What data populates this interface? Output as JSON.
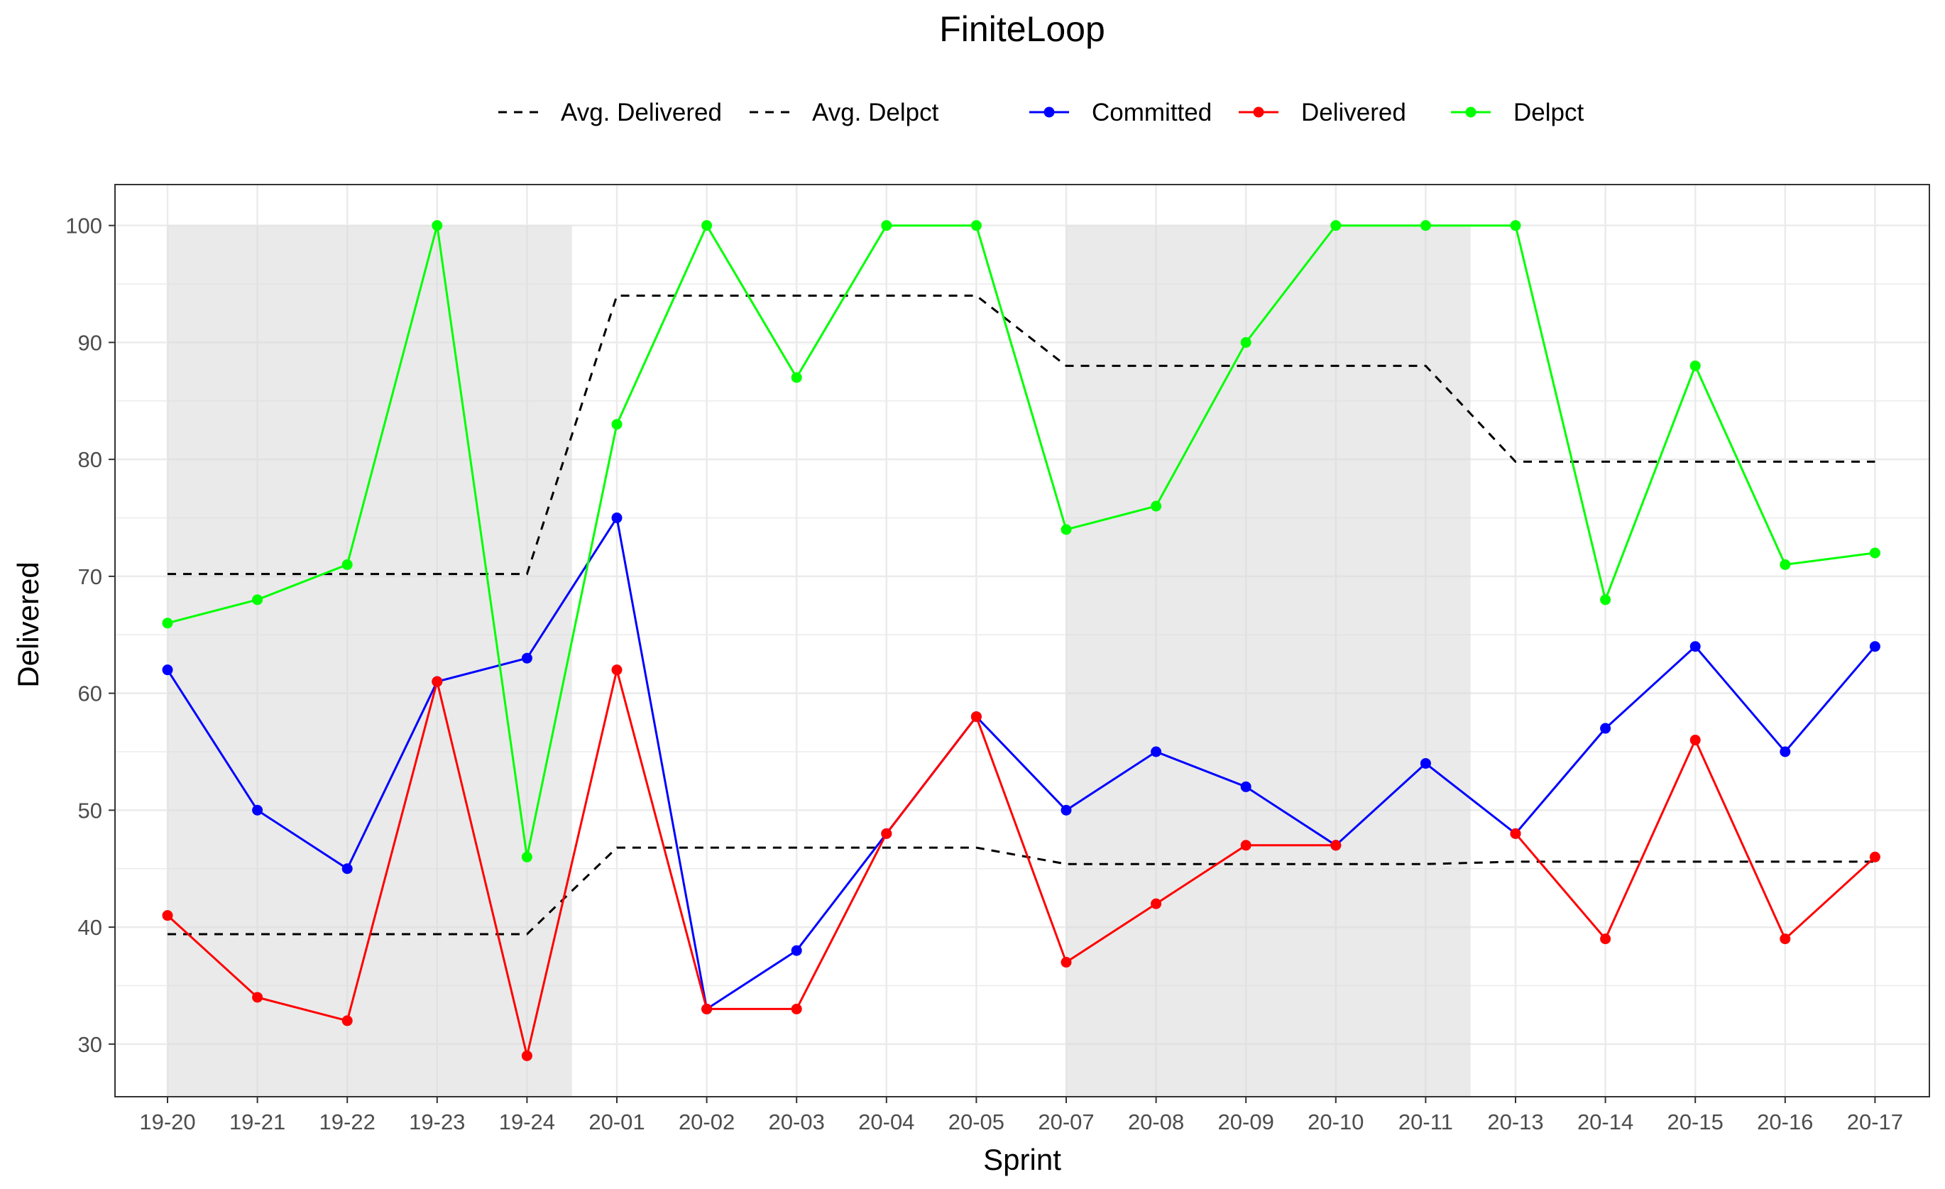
{
  "chart_data": {
    "type": "line",
    "title": "FiniteLoop",
    "xlabel": "Sprint",
    "ylabel": "Delivered",
    "categories": [
      "19-20",
      "19-21",
      "19-22",
      "19-23",
      "19-24",
      "20-01",
      "20-02",
      "20-03",
      "20-04",
      "20-05",
      "20-07",
      "20-08",
      "20-09",
      "20-10",
      "20-11",
      "20-13",
      "20-14",
      "20-15",
      "20-16",
      "20-17"
    ],
    "ylim": [
      25.5,
      103.5
    ],
    "yticks": [
      30,
      40,
      50,
      60,
      70,
      80,
      90,
      100
    ],
    "grid": true,
    "legend_position": "top",
    "shaded_ranges": [
      {
        "from": "19-20",
        "to": "19-24",
        "ymax": 100
      },
      {
        "from": "20-07",
        "to": "20-11",
        "ymax": 100
      }
    ],
    "series": [
      {
        "name": "Committed",
        "color": "#0000ff",
        "style": "line+points",
        "values": [
          62,
          50,
          45,
          61,
          63,
          75,
          33,
          38,
          48,
          58,
          50,
          55,
          52,
          47,
          54,
          48,
          57,
          64,
          55,
          64
        ]
      },
      {
        "name": "Delivered",
        "color": "#ff0000",
        "style": "line+points",
        "values": [
          41,
          34,
          32,
          61,
          29,
          62,
          33,
          33,
          48,
          58,
          37,
          42,
          47,
          47,
          null,
          48,
          39,
          56,
          39,
          46
        ]
      },
      {
        "name": "Delpct",
        "color": "#00ff00",
        "style": "line+points",
        "values": [
          66,
          68,
          71,
          100,
          46,
          83,
          100,
          87,
          100,
          100,
          74,
          76,
          90,
          100,
          100,
          100,
          68,
          88,
          71,
          72
        ]
      },
      {
        "name": "Avg. Delivered",
        "color": "#000000",
        "style": "dashed",
        "values": [
          39.4,
          39.4,
          39.4,
          39.4,
          39.4,
          46.8,
          46.8,
          46.8,
          46.8,
          46.8,
          45.4,
          45.4,
          45.4,
          45.4,
          45.4,
          45.6,
          45.6,
          45.6,
          45.6,
          45.6
        ]
      },
      {
        "name": "Avg. Delpct",
        "color": "#000000",
        "style": "dashed",
        "values": [
          70.2,
          70.2,
          70.2,
          70.2,
          70.2,
          94,
          94,
          94,
          94,
          94,
          88,
          88,
          88,
          88,
          88,
          79.8,
          79.8,
          79.8,
          79.8,
          79.8
        ]
      }
    ],
    "legend": {
      "dashed_items": [
        "Avg. Delivered",
        "Avg. Delpct"
      ],
      "point_items": [
        "Committed",
        "Delivered",
        "Delpct"
      ]
    }
  }
}
